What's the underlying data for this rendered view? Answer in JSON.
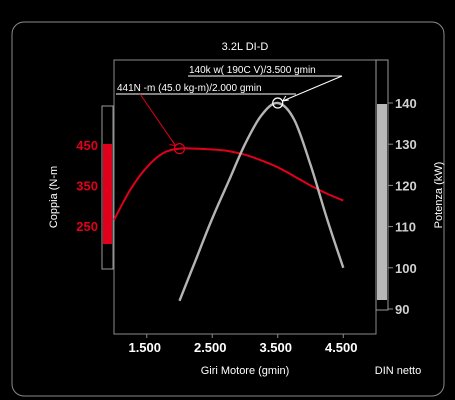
{
  "chart_data": {
    "type": "line",
    "title": "3.2L DI-D",
    "xlabel": "Giri Motore (gmin)",
    "x_ticks": [
      "1.500",
      "2.500",
      "3.500",
      "4.500"
    ],
    "xlim": [
      1000,
      5000
    ],
    "left_axis": {
      "label": "Coppia (N-m",
      "ticks": [
        "450",
        "350",
        "250"
      ],
      "tick_values": [
        450,
        350,
        250
      ],
      "range": [
        180,
        560
      ],
      "color": "#e0001b"
    },
    "right_axis": {
      "label": "Potenza (kW)",
      "ticks": [
        "140",
        "130",
        "120",
        "110",
        "100",
        "90"
      ],
      "tick_values": [
        140,
        130,
        120,
        110,
        100,
        90
      ],
      "range": [
        88,
        150
      ],
      "color": "#c8c8c8"
    },
    "series": [
      {
        "axis": "left",
        "color": "#e0001b",
        "x": [
          1000,
          1250,
          1500,
          1750,
          2000,
          2250,
          2500,
          2750,
          3000,
          3250,
          3500,
          3750,
          4000,
          4250,
          4500
        ],
        "y": [
          265,
          340,
          395,
          430,
          441,
          441,
          439,
          435,
          426,
          412,
          395,
          373,
          350,
          330,
          313
        ]
      },
      {
        "axis": "right",
        "color": "#b4b4b4",
        "x": [
          2000,
          2250,
          2500,
          2750,
          3000,
          3250,
          3500,
          3750,
          4000,
          4250,
          4500
        ],
        "y": [
          92,
          102,
          112,
          121,
          130,
          137,
          140,
          136,
          125,
          112,
          100
        ]
      }
    ],
    "annotations": [
      {
        "text": "441N -m (45.0 kg-m)/2.000 gmin",
        "x": 2000,
        "y": 441,
        "axis": "left"
      },
      {
        "text": "140k w( 190C V)/3.500 gmin",
        "x": 3500,
        "y": 140,
        "axis": "right"
      }
    ],
    "footnote": "DIN netto"
  }
}
